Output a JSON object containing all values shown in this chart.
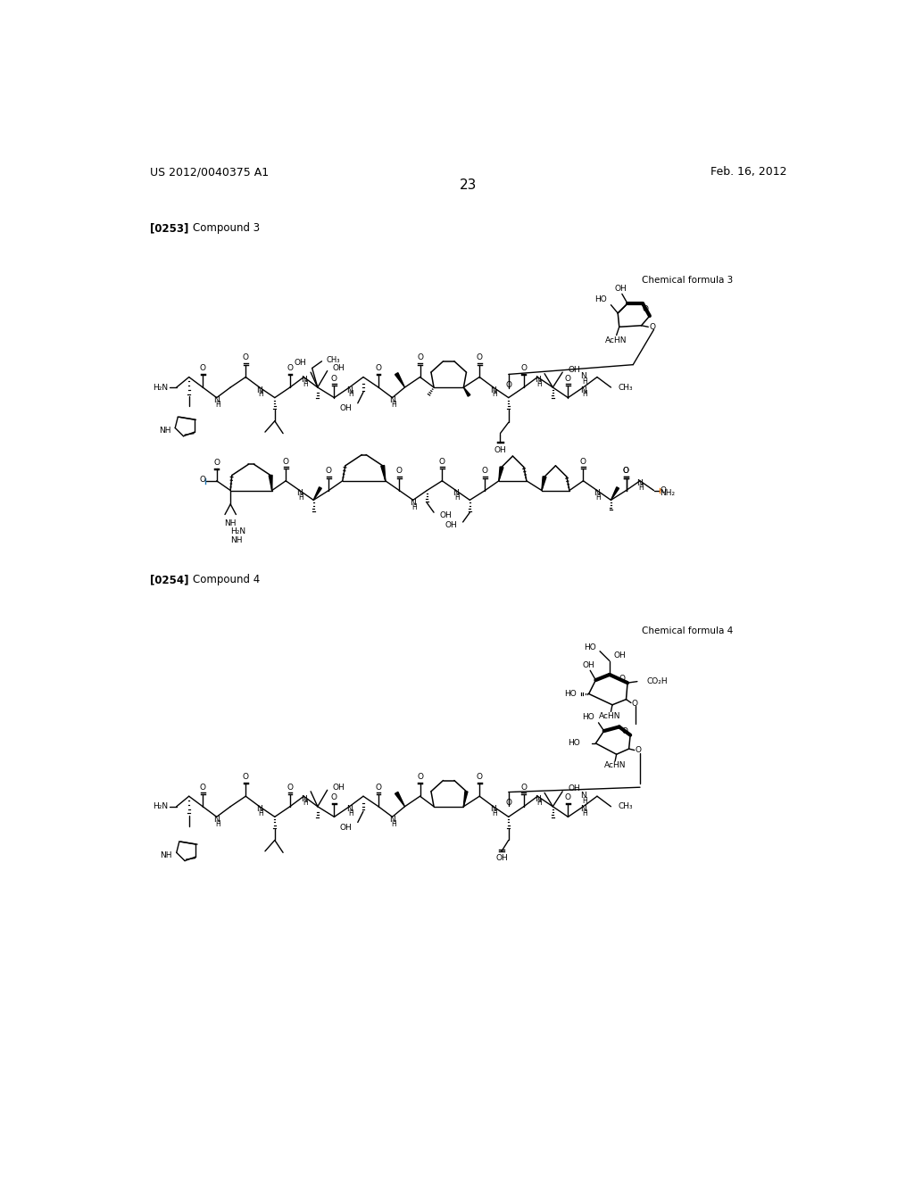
{
  "background_color": "#ffffff",
  "header_left": "US 2012/0040375 A1",
  "header_right": "Feb. 16, 2012",
  "page_number": "23",
  "compound3_label_num": "[0253]",
  "compound3_label_txt": "Compound 3",
  "compound4_label_num": "[0254]",
  "compound4_label_txt": "Compound 4",
  "chem_formula3": "Chemical formula 3",
  "chem_formula4": "Chemical formula 4"
}
